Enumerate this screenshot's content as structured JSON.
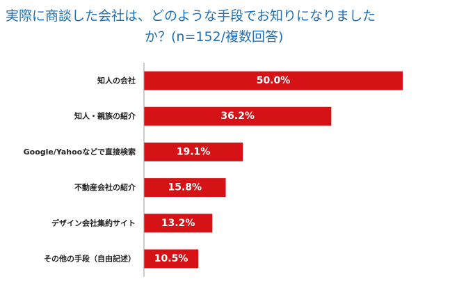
{
  "chart_data": {
    "type": "bar",
    "orientation": "horizontal",
    "title_lines": [
      "実際に商談した会社は、どのような手段でお知りになりました",
      "か？(n=152/複数回答)"
    ],
    "categories": [
      "知人の会社",
      "知人・親族の紹介",
      "Google/Yahooなどで直接検索",
      "不動産会社の紹介",
      "デザイン会社集約サイト",
      "その他の手段（自由記述）"
    ],
    "values": [
      50.0,
      36.2,
      19.1,
      15.8,
      13.2,
      10.5
    ],
    "data_labels": [
      "50.0%",
      "36.2%",
      "19.1%",
      "15.8%",
      "13.2%",
      "10.5%"
    ],
    "unit": "%",
    "xlim": [
      0,
      100
    ],
    "grid": false,
    "legend": "none",
    "bar_color": "#d51317",
    "axis_color": "#999999"
  }
}
